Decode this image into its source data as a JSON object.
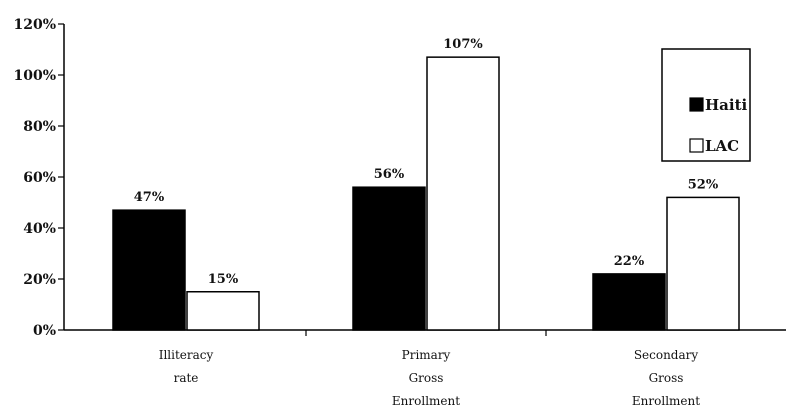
{
  "chart_data": {
    "type": "bar",
    "title": "",
    "xlabel": "",
    "ylabel": "",
    "categories": [
      [
        "Illiteracy",
        "rate"
      ],
      [
        "Primary",
        "Gross",
        "Enrollment"
      ],
      [
        "Secondary",
        "Gross",
        "Enrollment"
      ]
    ],
    "series": [
      {
        "name": "Haiti",
        "values": [
          47,
          56,
          22
        ],
        "labels": [
          "47%",
          "56%",
          "22%"
        ],
        "color": "#000000"
      },
      {
        "name": "LAC",
        "values": [
          15,
          107,
          52
        ],
        "labels": [
          "15%",
          "107%",
          "52%"
        ],
        "color": "#ffffff"
      }
    ],
    "ylim": [
      0,
      120
    ],
    "yticks": [
      {
        "value": 0,
        "label": "0%"
      },
      {
        "value": 20,
        "label": "20%"
      },
      {
        "value": 40,
        "label": "40%"
      },
      {
        "value": 60,
        "label": "60%"
      },
      {
        "value": 80,
        "label": "80%"
      },
      {
        "value": 100,
        "label": "100%"
      },
      {
        "value": 120,
        "label": "120%"
      }
    ],
    "grid": false,
    "legend": {
      "position": "top-right",
      "entries": [
        "Haiti",
        "LAC"
      ]
    }
  }
}
